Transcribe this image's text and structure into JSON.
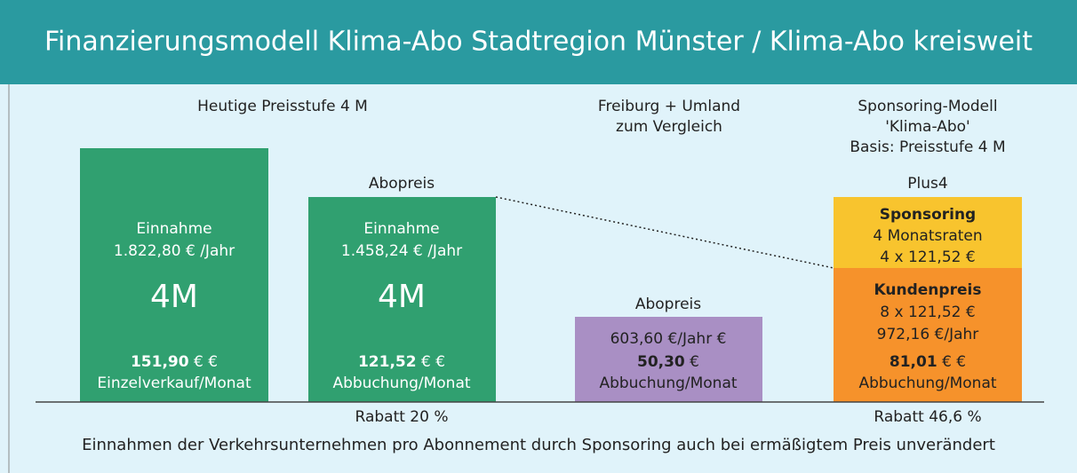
{
  "header": {
    "title": "Finanzierungsmodell Klima-Abo Stadtregion Münster / Klima-Abo kreisweit"
  },
  "groups": [
    {
      "heading": [
        "Heutige Preisstufe 4 M"
      ],
      "discount": "Rabatt 20 %"
    },
    {
      "heading": [
        "Freiburg + Umland",
        "zum Vergleich"
      ]
    },
    {
      "heading": [
        "Sponsoring-Modell",
        "'Klima-Abo'",
        "Basis: Preisstufe 4 M"
      ],
      "discount": "Rabatt 46,6 %"
    }
  ],
  "boxes": [
    {
      "lines": [
        "Einnahme",
        "1.822,80 € /Jahr"
      ],
      "big": "4M",
      "price": "151,90",
      "unit": "€ €",
      "note": "Einzelverkauf/Monat"
    },
    {
      "label": "Abopreis",
      "lines": [
        "Einnahme",
        "1.458,24 € /Jahr"
      ],
      "big": "4M",
      "price": "121,52",
      "unit": "€ €",
      "note": "Abbuchung/Monat"
    },
    {
      "label": "Abopreis",
      "lines": [
        "603,60 €/Jahr €"
      ],
      "price": "50,30",
      "unit": "€",
      "note": "Abbuchung/Monat"
    },
    {
      "label": "Plus4",
      "top": {
        "heading": "Sponsoring",
        "lines": [
          "4 Monatsraten",
          "4 x 121,52 €"
        ]
      },
      "heading": "Kundenpreis",
      "lines": [
        "8 x 121,52 €",
        "972,16 €/Jahr"
      ],
      "price": "81,01",
      "unit": "€ €",
      "note": "Abbuchung/Monat"
    }
  ],
  "footer": "Einnahmen der Verkehrsunternehmen pro Abonnement durch Sponsoring auch bei ermäßigtem Preis unverändert"
}
